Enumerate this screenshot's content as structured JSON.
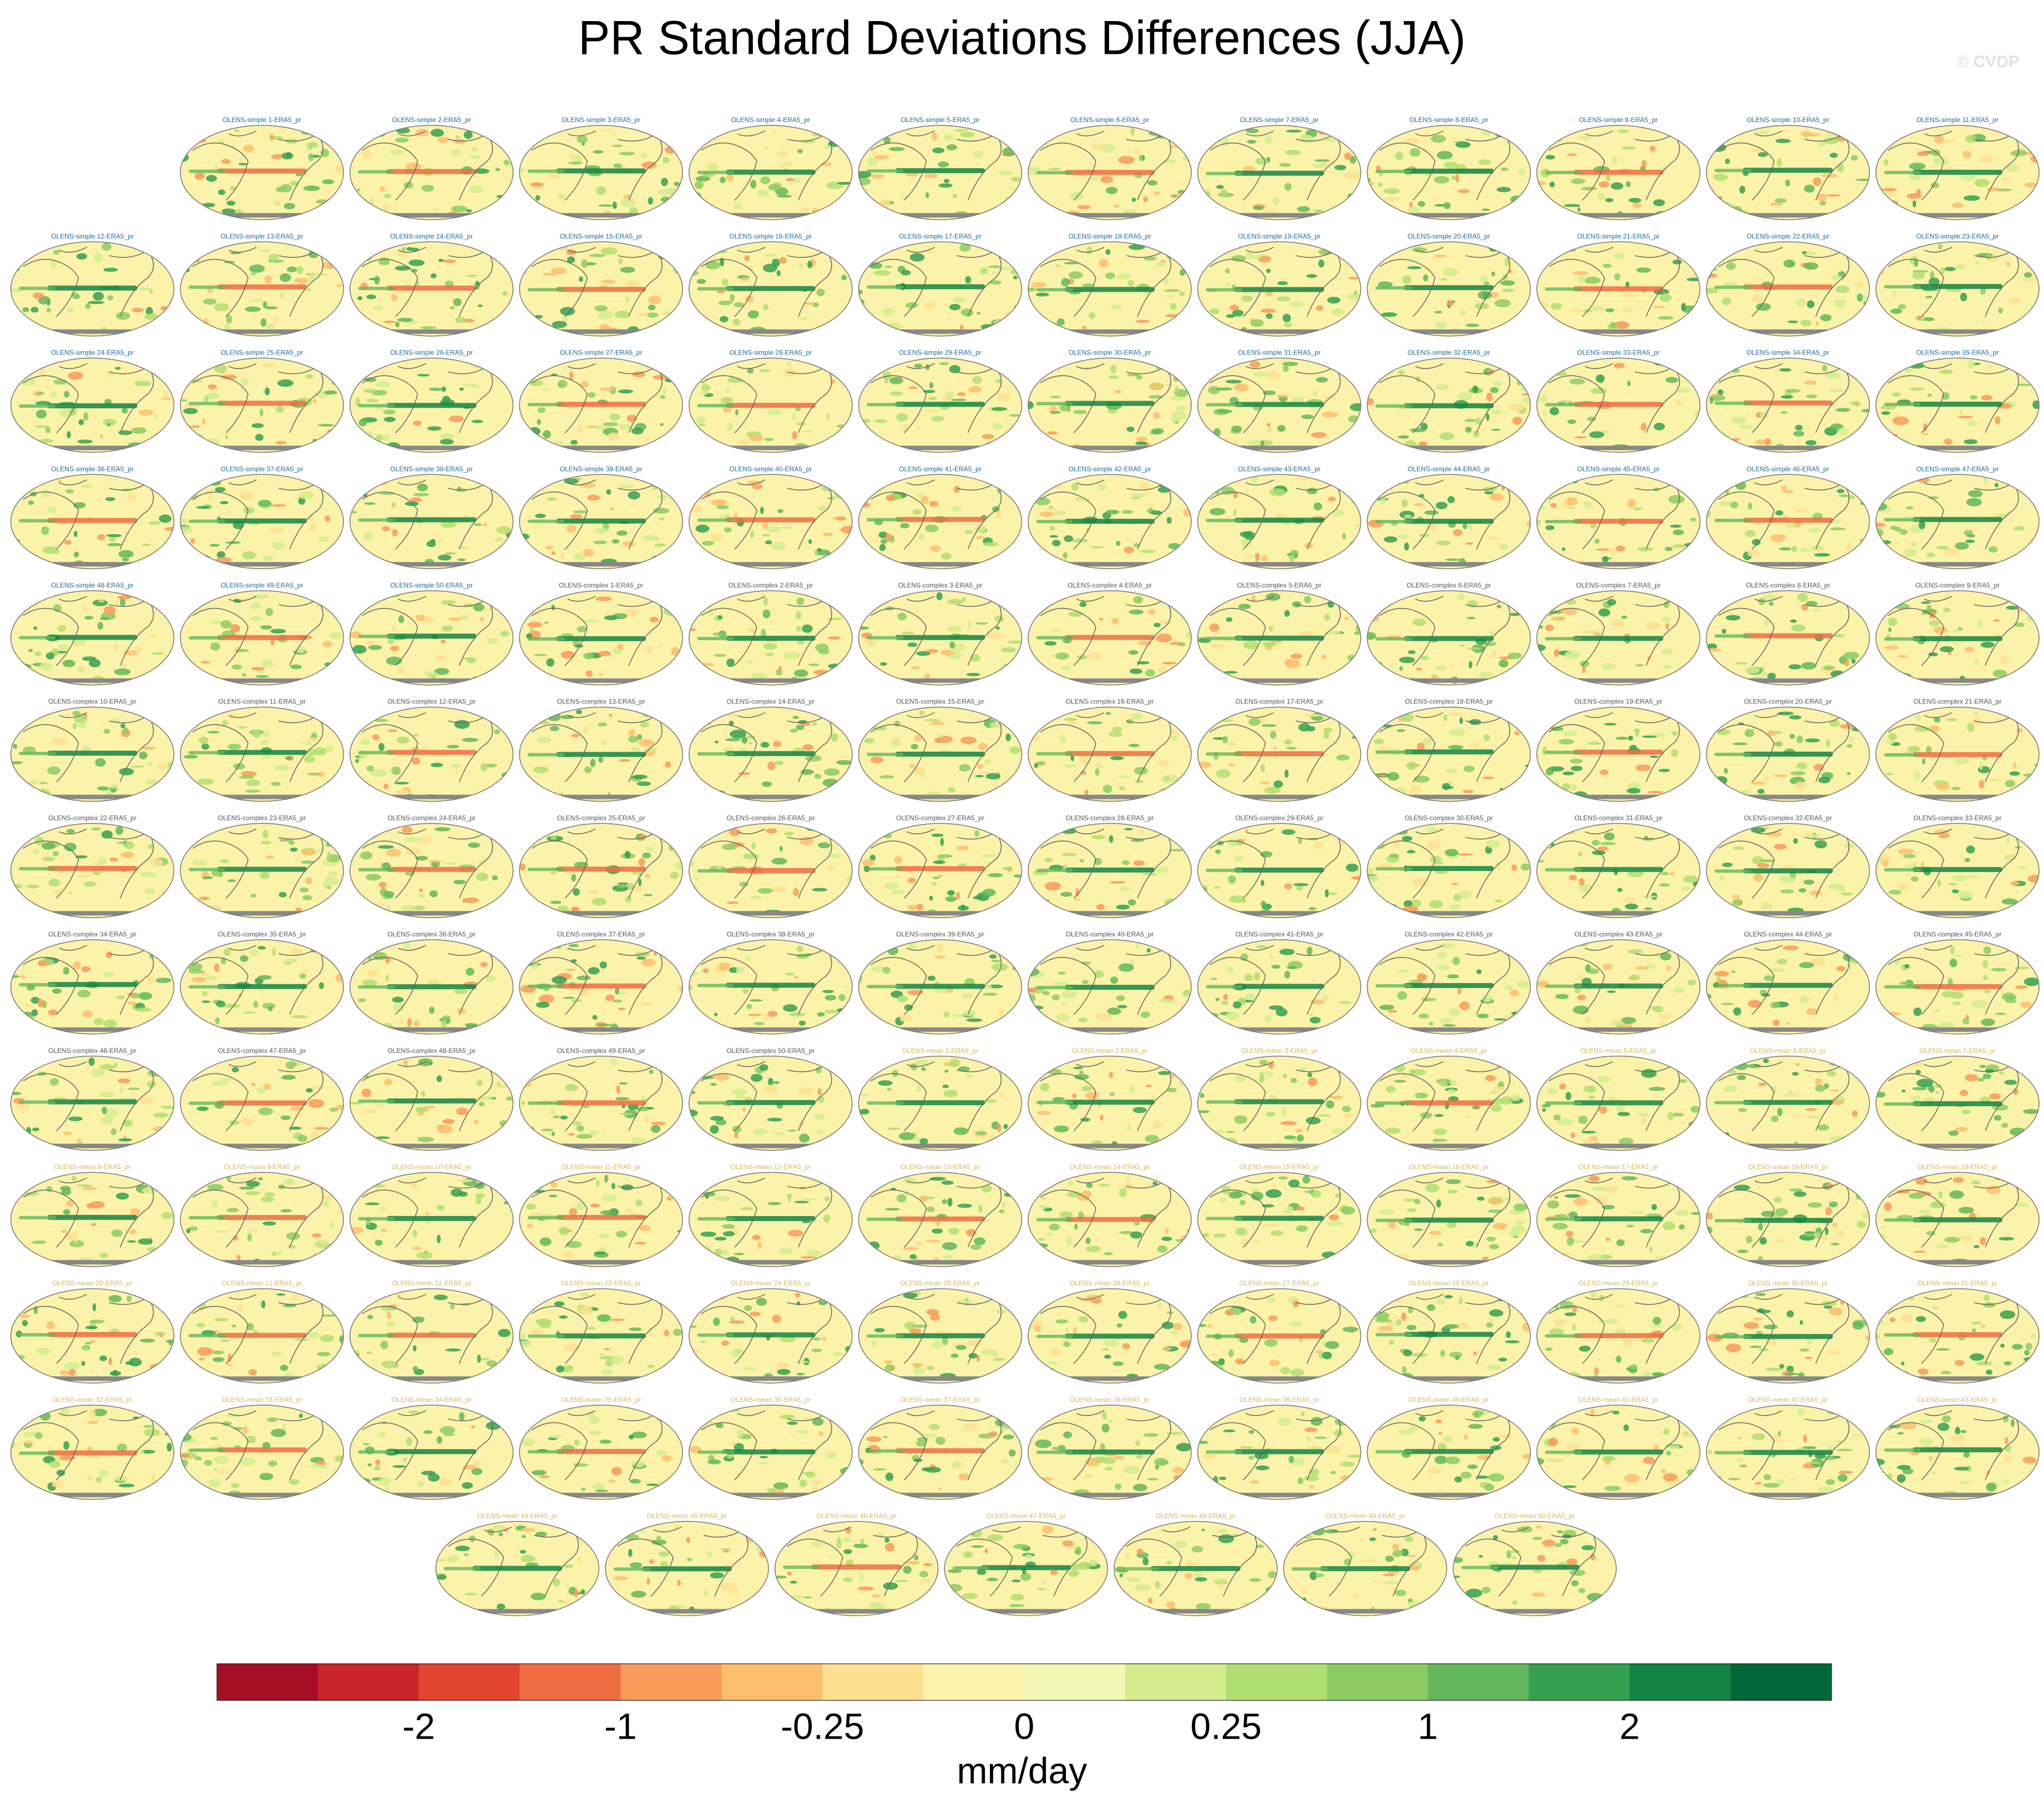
{
  "title": "PR Standard Deviations Differences (JJA)",
  "watermark": "© CVDP",
  "groups": [
    {
      "title_color": "#1f6a9a",
      "panels": [
        "OLENS-simple 1-ERA5_pr",
        "OLENS-simple 2-ERA5_pr",
        "OLENS-simple 3-ERA5_pr",
        "OLENS-simple 4-ERA5_pr",
        "OLENS-simple 5-ERA5_pr",
        "OLENS-simple 6-ERA5_pr",
        "OLENS-simple 7-ERA5_pr",
        "OLENS-simple 8-ERA5_pr",
        "OLENS-simple 9-ERA5_pr",
        "OLENS-simple 10-ERA5_pr",
        "OLENS-simple 11-ERA5_pr",
        "OLENS-simple 12-ERA5_pr",
        "OLENS-simple 13-ERA5_pr",
        "OLENS-simple 14-ERA5_pr",
        "OLENS-simple 15-ERA5_pr",
        "OLENS-simple 16-ERA5_pr",
        "OLENS-simple 17-ERA5_pr",
        "OLENS-simple 18-ERA5_pr",
        "OLENS-simple 19-ERA5_pr",
        "OLENS-simple 20-ERA5_pr",
        "OLENS-simple 21-ERA5_pr",
        "OLENS-simple 22-ERA5_pr",
        "OLENS-simple 23-ERA5_pr",
        "OLENS-simple 24-ERA5_pr",
        "OLENS-simple 25-ERA5_pr",
        "OLENS-simple 26-ERA5_pr",
        "OLENS-simple 27-ERA5_pr",
        "OLENS-simple 28-ERA5_pr",
        "OLENS-simple 29-ERA5_pr",
        "OLENS-simple 30-ERA5_pr",
        "OLENS-simple 31-ERA5_pr",
        "OLENS-simple 32-ERA5_pr",
        "OLENS-simple 33-ERA5_pr",
        "OLENS-simple 34-ERA5_pr",
        "OLENS-simple 35-ERA5_pr",
        "OLENS-simple 36-ERA5_pr",
        "OLENS-simple 37-ERA5_pr",
        "OLENS-simple 38-ERA5_pr",
        "OLENS-simple 39-ERA5_pr",
        "OLENS-simple 40-ERA5_pr",
        "OLENS-simple 41-ERA5_pr",
        "OLENS-simple 42-ERA5_pr",
        "OLENS-simple 43-ERA5_pr",
        "OLENS-simple 44-ERA5_pr",
        "OLENS-simple 45-ERA5_pr",
        "OLENS-simple 46-ERA5_pr",
        "OLENS-simple 47-ERA5_pr",
        "OLENS-simple 48-ERA5_pr",
        "OLENS-simple 49-ERA5_pr",
        "OLENS-simple 50-ERA5_pr"
      ]
    },
    {
      "title_color": "#555555",
      "panels": [
        "OLENS-complex 1-ERA5_pr",
        "OLENS-complex 2-ERA5_pr",
        "OLENS-complex 3-ERA5_pr",
        "OLENS-complex 4-ERA5_pr",
        "OLENS-complex 5-ERA5_pr",
        "OLENS-complex 6-ERA5_pr",
        "OLENS-complex 7-ERA5_pr",
        "OLENS-complex 8-ERA5_pr",
        "OLENS-complex 9-ERA5_pr",
        "OLENS-complex 10-ERA5_pr",
        "OLENS-complex 11-ERA5_pr",
        "OLENS-complex 12-ERA5_pr",
        "OLENS-complex 13-ERA5_pr",
        "OLENS-complex 14-ERA5_pr",
        "OLENS-complex 15-ERA5_pr",
        "OLENS-complex 16-ERA5_pr",
        "OLENS-complex 17-ERA5_pr",
        "OLENS-complex 18-ERA5_pr",
        "OLENS-complex 19-ERA5_pr",
        "OLENS-complex 20-ERA5_pr",
        "OLENS-complex 21-ERA5_pr",
        "OLENS-complex 22-ERA5_pr",
        "OLENS-complex 23-ERA5_pr",
        "OLENS-complex 24-ERA5_pr",
        "OLENS-complex 25-ERA5_pr",
        "OLENS-complex 26-ERA5_pr",
        "OLENS-complex 27-ERA5_pr",
        "OLENS-complex 28-ERA5_pr",
        "OLENS-complex 29-ERA5_pr",
        "OLENS-complex 30-ERA5_pr",
        "OLENS-complex 31-ERA5_pr",
        "OLENS-complex 32-ERA5_pr",
        "OLENS-complex 33-ERA5_pr",
        "OLENS-complex 34-ERA5_pr",
        "OLENS-complex 35-ERA5_pr",
        "OLENS-complex 36-ERA5_pr",
        "OLENS-complex 37-ERA5_pr",
        "OLENS-complex 38-ERA5_pr",
        "OLENS-complex 39-ERA5_pr",
        "OLENS-complex 40-ERA5_pr",
        "OLENS-complex 41-ERA5_pr",
        "OLENS-complex 42-ERA5_pr",
        "OLENS-complex 43-ERA5_pr",
        "OLENS-complex 44-ERA5_pr",
        "OLENS-complex 45-ERA5_pr",
        "OLENS-complex 46-ERA5_pr",
        "OLENS-complex 47-ERA5_pr",
        "OLENS-complex 48-ERA5_pr",
        "OLENS-complex 49-ERA5_pr",
        "OLENS-complex 50-ERA5_pr"
      ]
    },
    {
      "title_color": "#d2b85c",
      "panels": [
        "OLENS-mean 1-ERA5_pr",
        "OLENS-mean 2-ERA5_pr",
        "OLENS-mean 3-ERA5_pr",
        "OLENS-mean 4-ERA5_pr",
        "OLENS-mean 5-ERA5_pr",
        "OLENS-mean 6-ERA5_pr",
        "OLENS-mean 7-ERA5_pr",
        "OLENS-mean 8-ERA5_pr",
        "OLENS-mean 9-ERA5_pr",
        "OLENS-mean 10-ERA5_pr",
        "OLENS-mean 11-ERA5_pr",
        "OLENS-mean 12-ERA5_pr",
        "OLENS-mean 13-ERA5_pr",
        "OLENS-mean 14-ERA5_pr",
        "OLENS-mean 15-ERA5_pr",
        "OLENS-mean 16-ERA5_pr",
        "OLENS-mean 17-ERA5_pr",
        "OLENS-mean 18-ERA5_pr",
        "OLENS-mean 19-ERA5_pr",
        "OLENS-mean 20-ERA5_pr",
        "OLENS-mean 21-ERA5_pr",
        "OLENS-mean 22-ERA5_pr",
        "OLENS-mean 23-ERA5_pr",
        "OLENS-mean 24-ERA5_pr",
        "OLENS-mean 25-ERA5_pr",
        "OLENS-mean 26-ERA5_pr",
        "OLENS-mean 27-ERA5_pr",
        "OLENS-mean 28-ERA5_pr",
        "OLENS-mean 29-ERA5_pr",
        "OLENS-mean 30-ERA5_pr",
        "OLENS-mean 31-ERA5_pr",
        "OLENS-mean 32-ERA5_pr",
        "OLENS-mean 33-ERA5_pr",
        "OLENS-mean 34-ERA5_pr",
        "OLENS-mean 35-ERA5_pr",
        "OLENS-mean 36-ERA5_pr",
        "OLENS-mean 37-ERA5_pr",
        "OLENS-mean 38-ERA5_pr",
        "OLENS-mean 39-ERA5_pr",
        "OLENS-mean 40-ERA5_pr",
        "OLENS-mean 41-ERA5_pr",
        "OLENS-mean 42-ERA5_pr",
        "OLENS-mean 43-ERA5_pr",
        "OLENS-mean 44-ERA5_pr",
        "OLENS-mean 45-ERA5_pr",
        "OLENS-mean 46-ERA5_pr",
        "OLENS-mean 47-ERA5_pr",
        "OLENS-mean 48-ERA5_pr",
        "OLENS-mean 49-ERA5_pr",
        "OLENS-mean 50-ERA5_pr"
      ]
    }
  ],
  "colorbar": {
    "colors": [
      "#a50f26",
      "#c8242a",
      "#e04530",
      "#f06c42",
      "#f89a5a",
      "#fdbe6e",
      "#fde090",
      "#fdf1b0",
      "#f2f7b4",
      "#d4ec8e",
      "#b1de71",
      "#8ccb64",
      "#63b65c",
      "#34a050",
      "#138443",
      "#006837"
    ],
    "labels": [
      "-2",
      "-1",
      "-0.25",
      "0",
      "0.25",
      "1",
      "2"
    ],
    "units": "mm/day"
  }
}
